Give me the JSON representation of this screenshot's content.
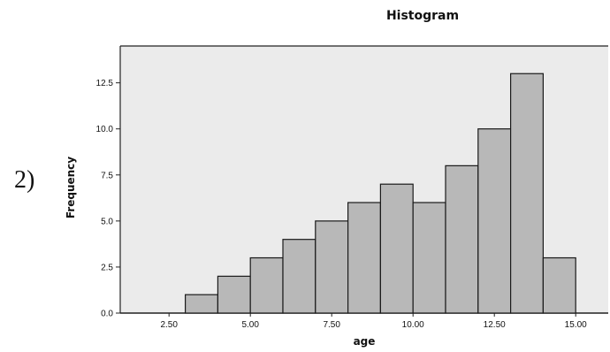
{
  "figure_label": "2)",
  "chart_data": {
    "type": "bar",
    "title": "Histogram",
    "xlabel": "age",
    "ylabel": "Frequency",
    "x_tick_labels": [
      "2.50",
      "5.00",
      "7.50",
      "10.00",
      "12.50",
      "15.00"
    ],
    "x_ticks": [
      2.5,
      5.0,
      7.5,
      10.0,
      12.5,
      15.0
    ],
    "y_tick_labels": [
      "0.0",
      "2.5",
      "5.0",
      "7.5",
      "10.0",
      "12.5"
    ],
    "y_ticks": [
      0.0,
      2.5,
      5.0,
      7.5,
      10.0,
      12.5
    ],
    "bin_width": 1.0,
    "bins": [
      {
        "x0": 3.0,
        "x1": 4.0,
        "count": 1
      },
      {
        "x0": 4.0,
        "x1": 5.0,
        "count": 2
      },
      {
        "x0": 5.0,
        "x1": 6.0,
        "count": 3
      },
      {
        "x0": 6.0,
        "x1": 7.0,
        "count": 4
      },
      {
        "x0": 7.0,
        "x1": 8.0,
        "count": 5
      },
      {
        "x0": 8.0,
        "x1": 9.0,
        "count": 6
      },
      {
        "x0": 9.0,
        "x1": 10.0,
        "count": 7
      },
      {
        "x0": 10.0,
        "x1": 11.0,
        "count": 6
      },
      {
        "x0": 11.0,
        "x1": 12.0,
        "count": 8
      },
      {
        "x0": 12.0,
        "x1": 13.0,
        "count": 10
      },
      {
        "x0": 13.0,
        "x1": 14.0,
        "count": 13
      },
      {
        "x0": 14.0,
        "x1": 15.0,
        "count": 3
      }
    ],
    "xlim": [
      1.0,
      16.0
    ],
    "ylim": [
      0,
      14.5
    ],
    "grid": false,
    "bar_color": "#b8b8b8",
    "plot_background": "#ebebeb"
  }
}
